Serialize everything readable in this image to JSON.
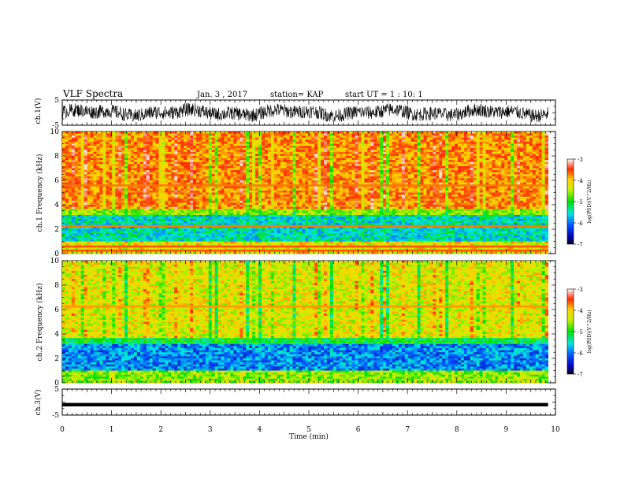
{
  "header": {
    "title": "VLF Spectra",
    "date": "Jan. 3 , 2017",
    "station": "station= KAP",
    "start": "start UT = 1 : 10: 1"
  },
  "chart_data": [
    {
      "type": "line",
      "name": "ch.1 waveform",
      "ylabel": "ch.1(V)",
      "ylim": [
        -5,
        5
      ],
      "xlim": [
        0,
        10
      ],
      "yticks": [
        "5",
        "-5"
      ],
      "note": "noisy time series, mostly between about -3 and 3 V"
    },
    {
      "type": "heatmap",
      "ylabel": "ch.1 Frequency (kHz)",
      "ylim": [
        0,
        10
      ],
      "xlim": [
        0,
        9.85
      ],
      "yticks": [
        "10",
        "8",
        "6",
        "4",
        "2",
        "0"
      ],
      "colorbar": {
        "label": "log(PSD)(V^2/Hz)",
        "ticks": [
          "-3",
          "-4",
          "-5",
          "-6",
          "-7"
        ],
        "range": [
          -7,
          -3
        ]
      },
      "pattern": "high power (-3.3 to -4) above ~3.5 kHz, low power (-5.5 to -6.5) between ~1 and 3 kHz, narrow high-power lines near 0.3-0.8 kHz, horizontal lines near 2.2 and 5.6 kHz"
    },
    {
      "type": "heatmap",
      "ylabel": "ch.2 Frequency (kHz)",
      "ylim": [
        0,
        10
      ],
      "xlim": [
        0,
        9.85
      ],
      "yticks": [
        "10",
        "8",
        "6",
        "4",
        "2",
        "0"
      ],
      "colorbar": {
        "label": "log(PSD)(V^2/Hz)",
        "ticks": [
          "-3",
          "-4",
          "-5",
          "-6",
          "-7"
        ],
        "range": [
          -7,
          -3
        ]
      },
      "pattern": "moderate power (-4 to -4.8) above ~3.5 kHz with red streaks, low power (-6 to -6.8) between ~1 and 3.2 kHz, horizontal line near 6.3 kHz"
    },
    {
      "type": "line",
      "name": "ch.3 waveform",
      "ylabel": "ch.3(V)",
      "ylim": [
        -5,
        5
      ],
      "xlim": [
        0,
        10
      ],
      "yticks": [
        "5",
        "-5"
      ],
      "note": "flat thick line near -1 V"
    }
  ],
  "xaxis": {
    "label": "Time (min)",
    "ticks": [
      "0",
      "1",
      "2",
      "3",
      "4",
      "5",
      "6",
      "7",
      "8",
      "9",
      "10"
    ]
  }
}
